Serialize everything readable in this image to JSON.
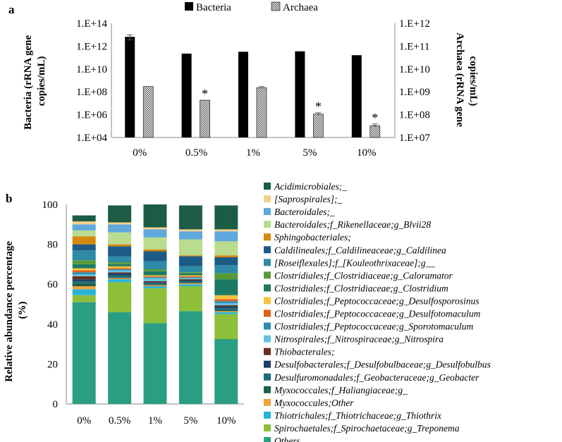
{
  "panel_labels": {
    "a": "a",
    "b": "b"
  },
  "chart_data": [
    {
      "type": "bar",
      "panel": "a",
      "categories": [
        "0%",
        "0.5%",
        "1%",
        "5%",
        "10%"
      ],
      "yscale": "log",
      "ylabel": "Bacteria (rRNA gene copies/mL)",
      "ylabel_lines": [
        "Bacteria (rRNA gene",
        "copies/mL)"
      ],
      "ylim": [
        10000,
        100000000000000
      ],
      "yticks": [
        "1.E+04",
        "1.E+06",
        "1.E+08",
        "1.E+10",
        "1.E+12",
        "1.E+14"
      ],
      "y2label": "Archaea (rRNA gene copies/mL)",
      "y2label_lines": [
        "Archaea  (rRNA gene",
        "copies/mL)"
      ],
      "y2lim": [
        10000000,
        1000000000000
      ],
      "y2ticks": [
        "1.E+07",
        "1.E+08",
        "1.E+09",
        "1.E+10",
        "1.E+11",
        "1.E+12"
      ],
      "legend": "top",
      "series": [
        {
          "name": "Bacteria",
          "axis": "left",
          "color": "#000000",
          "values": [
            6500000000000.0,
            220000000000.0,
            320000000000.0,
            350000000000.0,
            160000000000.0
          ],
          "errors": [
            3000000000000.0,
            0,
            0,
            0,
            0
          ],
          "significant": [
            false,
            false,
            false,
            false,
            false
          ]
        },
        {
          "name": "Archaea",
          "axis": "right",
          "color": "#d9d9d9",
          "pattern": "dotted",
          "values": [
            1700000000.0,
            430000000.0,
            1500000000.0,
            105000000.0,
            33000000.0
          ],
          "errors": [
            0,
            0,
            200000000.0,
            15000000.0,
            6000000.0
          ],
          "significant": [
            false,
            true,
            false,
            true,
            true
          ]
        }
      ],
      "annotation": "*"
    },
    {
      "type": "bar",
      "stacked": true,
      "panel": "b",
      "categories": [
        "0%",
        "0.5%",
        "1%",
        "5%",
        "10%"
      ],
      "ylabel": "Relative abundance percentage (%)",
      "ylabel_lines": [
        "Relative abundance percentage",
        "(%)"
      ],
      "ylim": [
        0,
        100
      ],
      "yticks": [
        "0",
        "20",
        "40",
        "60",
        "80",
        "100"
      ],
      "legend": "right",
      "series": [
        {
          "name": "Others",
          "color": "#2a9e82",
          "values": [
            51,
            46,
            40.5,
            46.5,
            32.5
          ]
        },
        {
          "name": "Spirochaetales;f_Spirochaetaceae;g_Treponema",
          "color": "#8dbf3b",
          "values": [
            3.5,
            15,
            17.5,
            12.5,
            12.5
          ]
        },
        {
          "name": "Thiotrichales;f_Thiotrichaceae;g_Thiothrix",
          "color": "#2ab3d6",
          "values": [
            3,
            1.5,
            1,
            1,
            1
          ]
        },
        {
          "name": "Myxococcales;Other",
          "color": "#f2a43a",
          "values": [
            1.5,
            0.5,
            0.5,
            0.5,
            0.5
          ]
        },
        {
          "name": "Myxococcales;f_Haliangiaceae;g_",
          "color": "#1f5f4b",
          "values": [
            1.5,
            0.5,
            0.5,
            0.5,
            0.5
          ]
        },
        {
          "name": "Desulfuromonadales;f_Geobacteraceae;g_Geobacter",
          "color": "#1d6b7e",
          "values": [
            1,
            1,
            0.5,
            0.5,
            1
          ]
        },
        {
          "name": "Desulfobacterales;f_Desulfobulbaceae;g_Desulfobulbus",
          "color": "#1b3f66",
          "values": [
            1,
            1,
            0.5,
            0.5,
            1
          ]
        },
        {
          "name": "Thiobacterales;",
          "color": "#6b2e1a",
          "values": [
            1.5,
            0.5,
            0.5,
            0.5,
            0.5
          ]
        },
        {
          "name": "Nitrospirales;f_Nitrospiraceae;g_Nitrospira",
          "color": "#67c4e0",
          "values": [
            1,
            1,
            1.5,
            0.5,
            1
          ]
        },
        {
          "name": "Clostridiales;f_Peptococcaceae;g_Sporotomaculum",
          "color": "#2c8db3",
          "values": [
            1,
            0.5,
            0.5,
            0.5,
            1
          ]
        },
        {
          "name": "Clostridiales;f_Peptococcaceae;g_Desulfotomaculum",
          "color": "#e0601d",
          "values": [
            1,
            0.5,
            0.5,
            0.5,
            1
          ]
        },
        {
          "name": "Clostridiales;f_Peptococcaceae;g_Desulfosporosinus",
          "color": "#f5c242",
          "values": [
            1,
            1,
            0.5,
            0.5,
            2
          ]
        },
        {
          "name": "Clostridiales;f_Clostridiaceae;g_Clostridium",
          "color": "#1c7a64",
          "values": [
            2,
            1,
            2,
            1,
            8
          ]
        },
        {
          "name": "Clostridiales;f_Clostridiaceae;g_Caloramator",
          "color": "#5b9a38",
          "values": [
            2,
            1,
            1,
            0.5,
            3
          ]
        },
        {
          "name": "[Roseiflexales];f_[Kouleothrixaceae];g__",
          "color": "#2e8aa6",
          "values": [
            5,
            3,
            4,
            3,
            4
          ]
        },
        {
          "name": "Caldilineales;f_Caldilineaceae;g_Caldilinea",
          "color": "#1d5b87",
          "values": [
            3,
            5,
            5,
            5,
            4
          ]
        },
        {
          "name": "Sphingobacteriales;",
          "color": "#d6880c",
          "values": [
            4,
            1,
            1,
            0.5,
            1
          ]
        },
        {
          "name": "Bacteroidales;f_Rikenellaceae;g_Blvii28",
          "color": "#b9dc8f",
          "values": [
            3,
            6,
            6,
            8,
            7
          ]
        },
        {
          "name": "Bacteroidales;_",
          "color": "#5fa8dc",
          "values": [
            3,
            4,
            4,
            4,
            5
          ]
        },
        {
          "name": "[Saprospirales];_",
          "color": "#f5d08a",
          "values": [
            1.5,
            1,
            1,
            1,
            1
          ]
        },
        {
          "name": "Acidimicrobiales;_",
          "color": "#1c5c45",
          "values": [
            3.0,
            8.5,
            11.5,
            12.0,
            12.0
          ]
        }
      ]
    }
  ]
}
